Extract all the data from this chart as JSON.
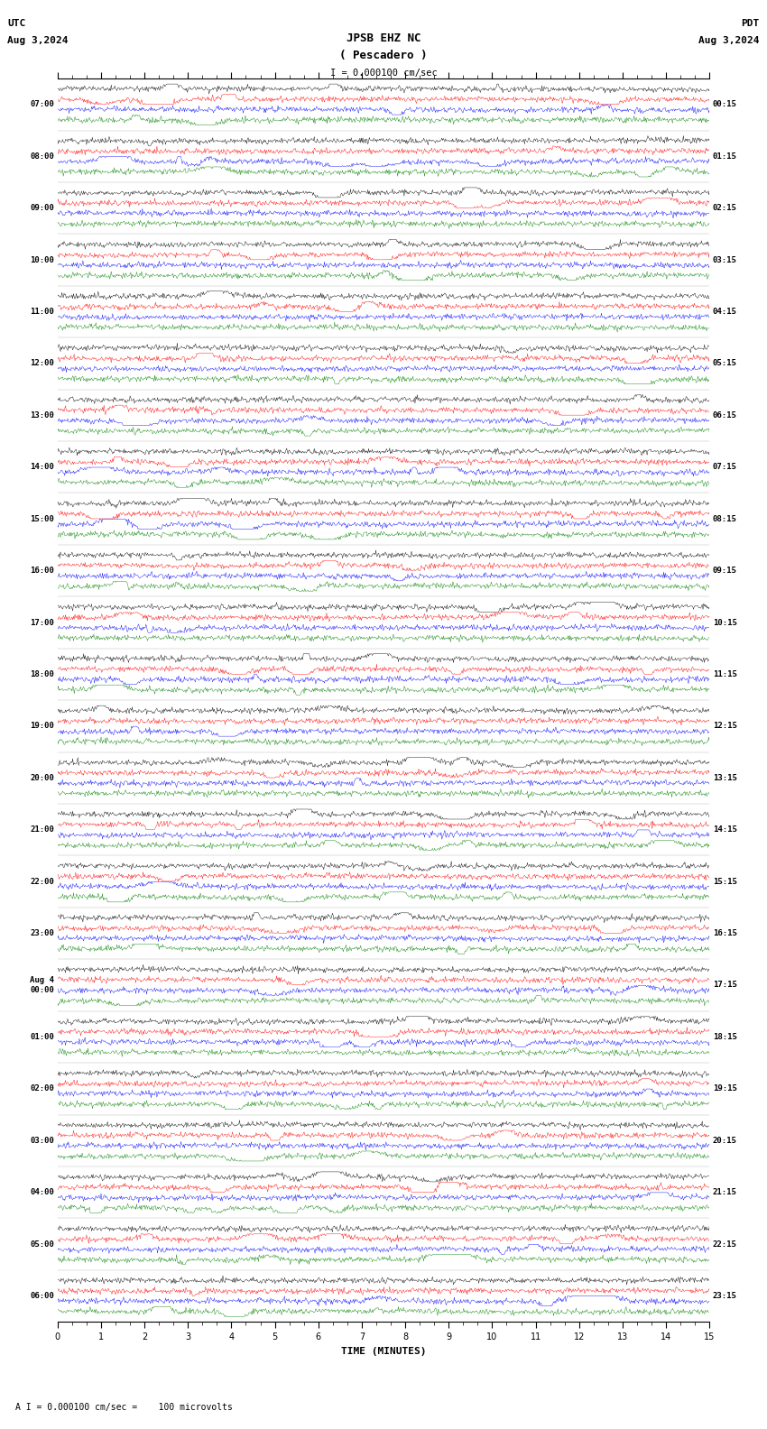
{
  "title_line1": "JPSB EHZ NC",
  "title_line2": "( Pescadero )",
  "scale_text": "I = 0.000100 cm/sec",
  "utc_label": "UTC",
  "utc_date": "Aug 3,2024",
  "pdt_label": "PDT",
  "pdt_date": "Aug 3,2024",
  "bottom_label": "A I = 0.000100 cm/sec =    100 microvolts",
  "xlabel": "TIME (MINUTES)",
  "bg_color": "#ffffff",
  "trace_colors": [
    "#000000",
    "#ff0000",
    "#0000ff",
    "#008000"
  ],
  "left_times": [
    "07:00",
    "08:00",
    "09:00",
    "10:00",
    "11:00",
    "12:00",
    "13:00",
    "14:00",
    "15:00",
    "16:00",
    "17:00",
    "18:00",
    "19:00",
    "20:00",
    "21:00",
    "22:00",
    "23:00",
    "Aug 4\n00:00",
    "01:00",
    "02:00",
    "03:00",
    "04:00",
    "05:00",
    "06:00"
  ],
  "right_times": [
    "00:15",
    "01:15",
    "02:15",
    "03:15",
    "04:15",
    "05:15",
    "06:15",
    "07:15",
    "08:15",
    "09:15",
    "10:15",
    "11:15",
    "12:15",
    "13:15",
    "14:15",
    "15:15",
    "16:15",
    "17:15",
    "18:15",
    "19:15",
    "20:15",
    "21:15",
    "22:15",
    "23:15"
  ],
  "num_rows": 24,
  "traces_per_row": 4,
  "x_min": 0,
  "x_max": 15,
  "x_ticks": [
    0,
    1,
    2,
    3,
    4,
    5,
    6,
    7,
    8,
    9,
    10,
    11,
    12,
    13,
    14,
    15
  ]
}
